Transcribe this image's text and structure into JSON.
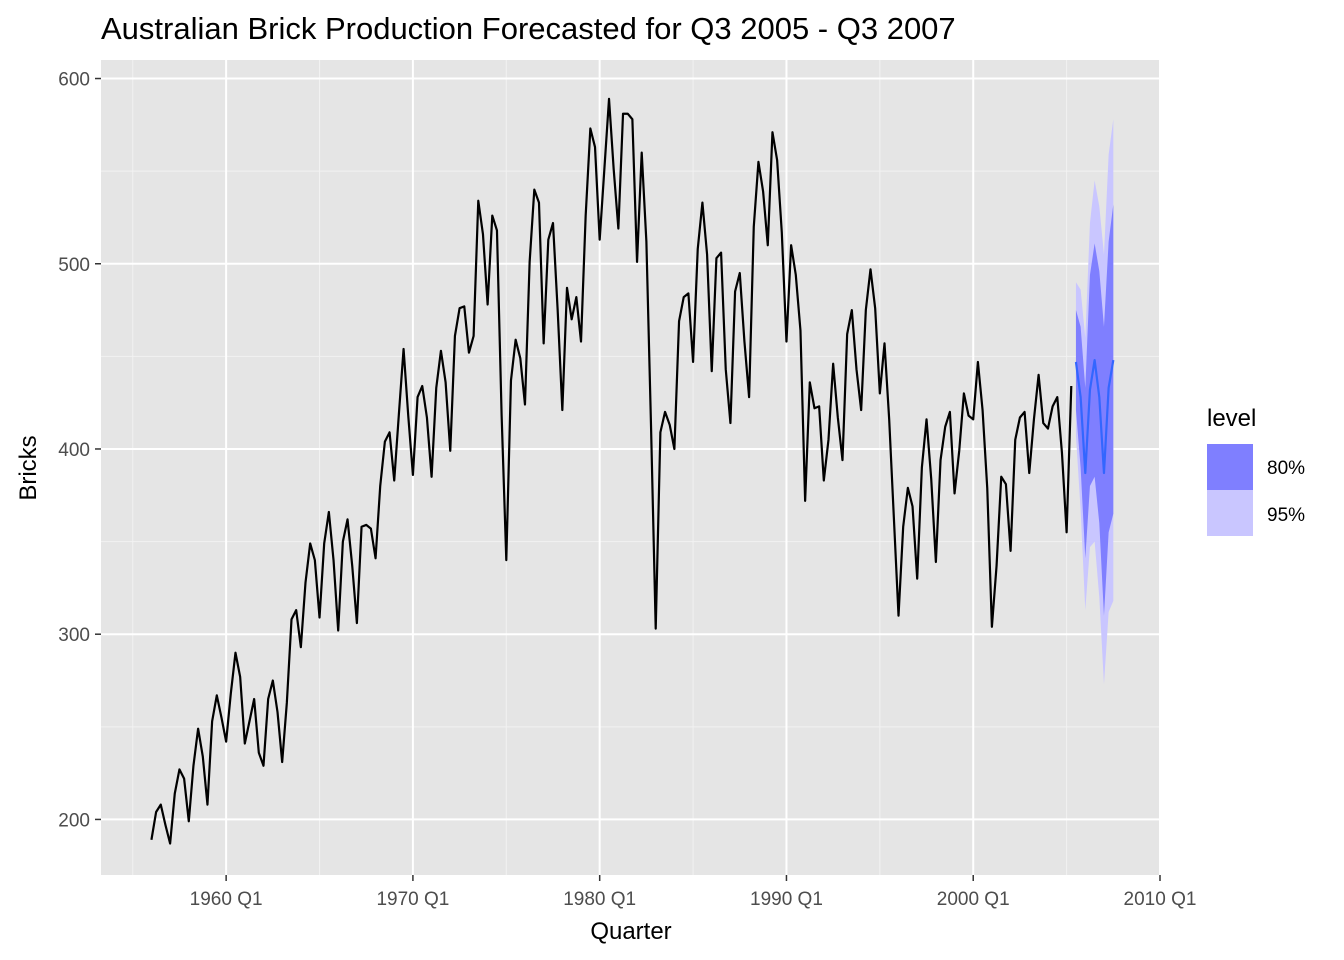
{
  "chart_data": {
    "type": "line",
    "title": "Australian Brick Production Forecasted for Q3 2005 - Q3 2007",
    "xlabel": "Quarter",
    "ylabel": "Bricks",
    "xlim": [
      1953.3,
      2010
    ],
    "ylim": [
      170,
      610
    ],
    "x_ticks": [
      {
        "value": 1960,
        "label": "1960 Q1"
      },
      {
        "value": 1970,
        "label": "1970 Q1"
      },
      {
        "value": 1980,
        "label": "1980 Q1"
      },
      {
        "value": 1990,
        "label": "1990 Q1"
      },
      {
        "value": 2000,
        "label": "2000 Q1"
      },
      {
        "value": 2010,
        "label": "2010 Q1"
      }
    ],
    "y_ticks": [
      200,
      300,
      400,
      500,
      600
    ],
    "grid": true,
    "panel_background": "#e5e5e5",
    "history": {
      "name": "Bricks",
      "color": "#000000",
      "x_start": 1956.0,
      "x_step": 0.25,
      "values": [
        189,
        204,
        208,
        197,
        187,
        214,
        227,
        222,
        199,
        229,
        249,
        234,
        208,
        253,
        267,
        255,
        242,
        268,
        290,
        277,
        241,
        253,
        265,
        236,
        229,
        265,
        275,
        258,
        231,
        263,
        308,
        313,
        293,
        328,
        349,
        340,
        309,
        349,
        366,
        340,
        302,
        350,
        362,
        337,
        306,
        358,
        359,
        357,
        341,
        380,
        404,
        409,
        383,
        419,
        454,
        418,
        386,
        428,
        434,
        417,
        385,
        433,
        453,
        436,
        399,
        461,
        476,
        477,
        452,
        461,
        534,
        516,
        478,
        526,
        518,
        418,
        340,
        437,
        459,
        449,
        424,
        501,
        540,
        533,
        457,
        513,
        522,
        475,
        421,
        487,
        470,
        482,
        458,
        526,
        573,
        563,
        513,
        551,
        589,
        551,
        519,
        581,
        581,
        578,
        501,
        560,
        512,
        412,
        303,
        409,
        420,
        413,
        400,
        469,
        482,
        484,
        447,
        508,
        533,
        505,
        442,
        503,
        506,
        443,
        414,
        485,
        495,
        458,
        428,
        520,
        555,
        539,
        510,
        571,
        556,
        517,
        458,
        510,
        494,
        464,
        372,
        436,
        422,
        423,
        383,
        405,
        446,
        417,
        394,
        462,
        475,
        443,
        421,
        475,
        497,
        476,
        430,
        457,
        416,
        363,
        310,
        358,
        379,
        369,
        330,
        390,
        416,
        384,
        339,
        394,
        412,
        420,
        376,
        399,
        430,
        418,
        416,
        447,
        421,
        379,
        304,
        337,
        385,
        381,
        345,
        405,
        417,
        420,
        387,
        416,
        440,
        414,
        411,
        423,
        428,
        398,
        355,
        434
      ]
    },
    "forecast": {
      "color": "#3366ff",
      "x": [
        2005.5,
        2005.75,
        2006.0,
        2006.25,
        2006.5,
        2006.75,
        2007.0,
        2007.25,
        2007.5
      ],
      "mean": [
        447,
        428,
        387,
        432,
        448,
        428,
        387,
        433,
        448
      ],
      "lo80": [
        421,
        390,
        341,
        380,
        385,
        360,
        310,
        355,
        365
      ],
      "hi80": [
        475,
        466,
        433,
        494,
        511,
        496,
        466,
        512,
        532
      ],
      "lo95": [
        407,
        367,
        313,
        347,
        350,
        320,
        273,
        312,
        318
      ],
      "hi95": [
        490,
        486,
        460,
        522,
        545,
        531,
        505,
        559,
        578
      ]
    },
    "legend": {
      "title": "level",
      "position": "right",
      "items": [
        {
          "label": "80%",
          "color": "#7f7fff"
        },
        {
          "label": "95%",
          "color": "#c9c6ff"
        }
      ]
    }
  }
}
